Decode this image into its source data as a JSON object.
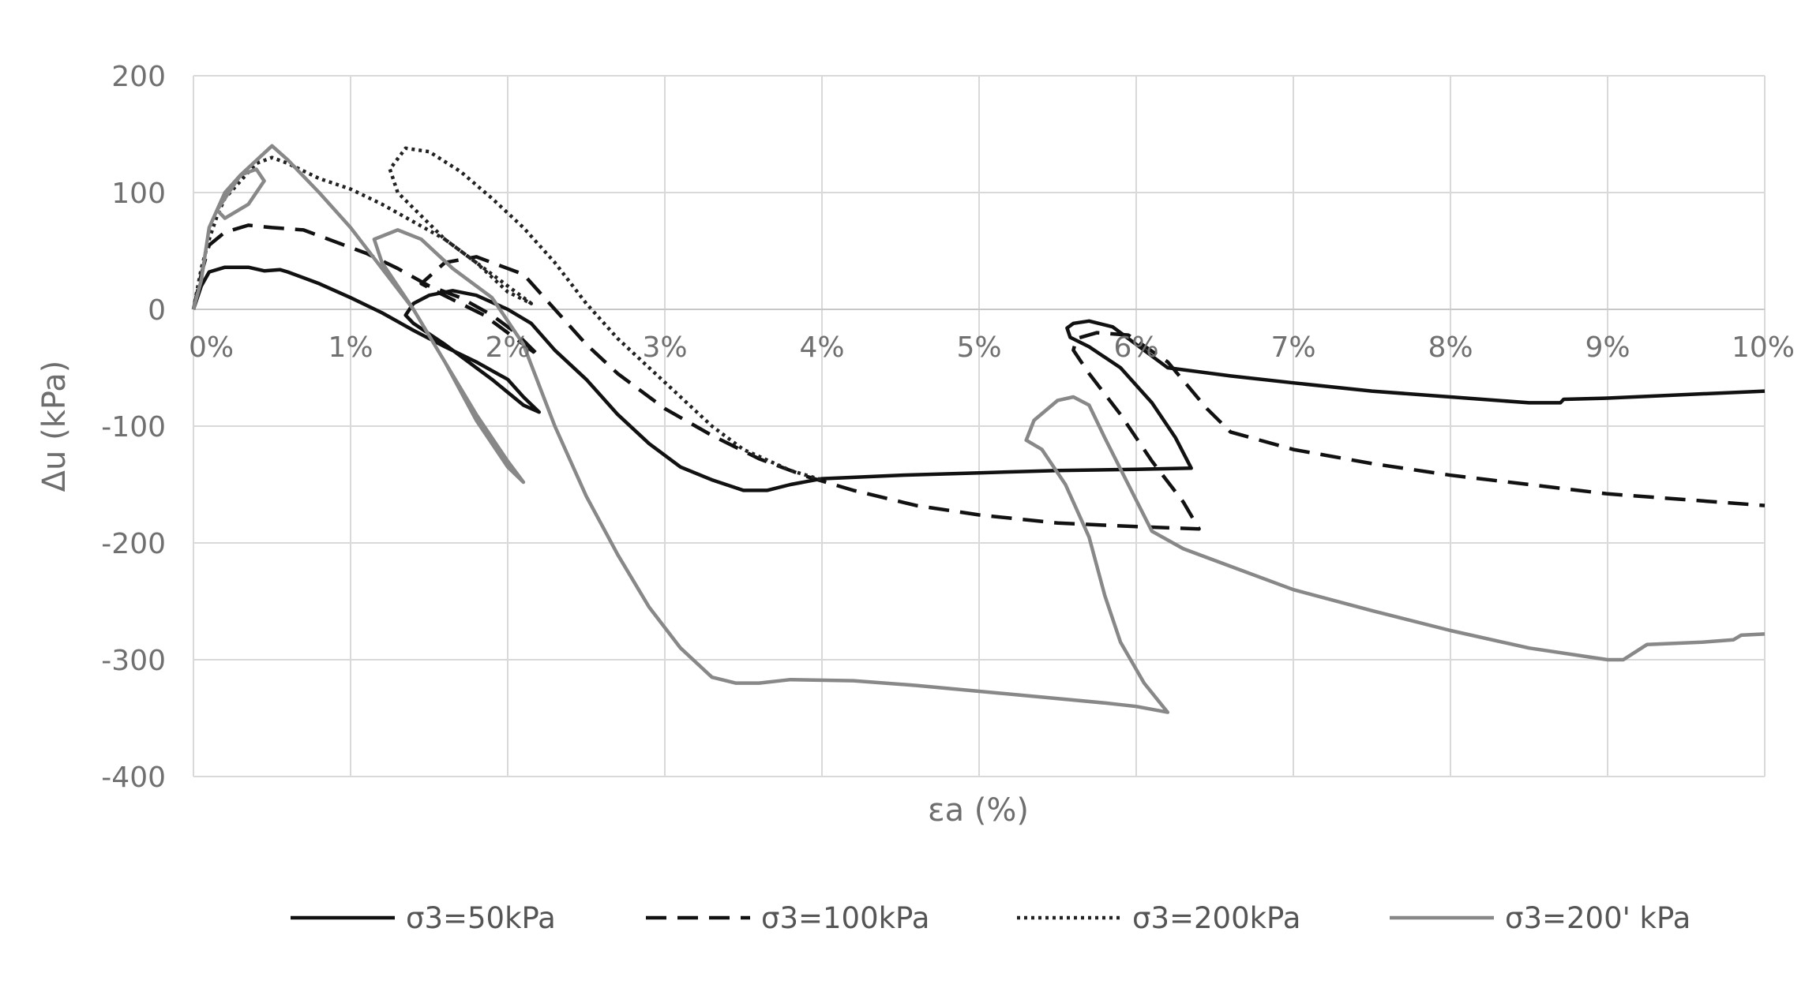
{
  "chart_data": {
    "type": "line",
    "title": "",
    "xlabel": "εa (%)",
    "ylabel": "Δu (kPa)",
    "xlim": [
      0,
      10
    ],
    "ylim": [
      -400,
      200
    ],
    "x_ticks": [
      {
        "value": 0,
        "label": "0%"
      },
      {
        "value": 1,
        "label": "1%"
      },
      {
        "value": 2,
        "label": "2%"
      },
      {
        "value": 3,
        "label": "3%"
      },
      {
        "value": 4,
        "label": "4%"
      },
      {
        "value": 5,
        "label": "5%"
      },
      {
        "value": 6,
        "label": "6%"
      },
      {
        "value": 7,
        "label": "7%"
      },
      {
        "value": 8,
        "label": "8%"
      },
      {
        "value": 9,
        "label": "9%"
      },
      {
        "value": 10,
        "label": "10%"
      }
    ],
    "y_ticks": [
      {
        "value": 200,
        "label": "200"
      },
      {
        "value": 100,
        "label": "100"
      },
      {
        "value": 0,
        "label": "0"
      },
      {
        "value": -100,
        "label": "-100"
      },
      {
        "value": -200,
        "label": "-200"
      },
      {
        "value": -300,
        "label": "-300"
      },
      {
        "value": -400,
        "label": "-400"
      }
    ],
    "grid": true,
    "legend_position": "bottom",
    "series": [
      {
        "name": "σ3=50kPa",
        "color": "#111111",
        "dash": "solid",
        "points": [
          [
            0,
            0
          ],
          [
            0.05,
            20
          ],
          [
            0.1,
            32
          ],
          [
            0.2,
            36
          ],
          [
            0.35,
            36
          ],
          [
            0.45,
            33
          ],
          [
            0.55,
            34
          ],
          [
            0.6,
            32
          ],
          [
            0.8,
            22
          ],
          [
            1.0,
            10
          ],
          [
            1.2,
            -3
          ],
          [
            1.4,
            -18
          ],
          [
            1.6,
            -32
          ],
          [
            1.8,
            -45
          ],
          [
            2.0,
            -60
          ],
          [
            2.1,
            -75
          ],
          [
            2.2,
            -88
          ],
          [
            2.1,
            -82
          ],
          [
            1.9,
            -60
          ],
          [
            1.6,
            -30
          ],
          [
            1.4,
            -12
          ],
          [
            1.35,
            -5
          ],
          [
            1.4,
            5
          ],
          [
            1.5,
            12
          ],
          [
            1.65,
            16
          ],
          [
            1.8,
            12
          ],
          [
            2.0,
            0
          ],
          [
            2.15,
            -12
          ],
          [
            2.3,
            -35
          ],
          [
            2.5,
            -60
          ],
          [
            2.7,
            -90
          ],
          [
            2.9,
            -115
          ],
          [
            3.1,
            -135
          ],
          [
            3.3,
            -146
          ],
          [
            3.5,
            -155
          ],
          [
            3.65,
            -155
          ],
          [
            3.8,
            -150
          ],
          [
            4.0,
            -145
          ],
          [
            4.5,
            -142
          ],
          [
            5.0,
            -140
          ],
          [
            5.5,
            -138
          ],
          [
            6.0,
            -137
          ],
          [
            6.35,
            -136
          ],
          [
            6.25,
            -110
          ],
          [
            6.1,
            -80
          ],
          [
            5.9,
            -50
          ],
          [
            5.7,
            -32
          ],
          [
            5.58,
            -24
          ],
          [
            5.56,
            -16
          ],
          [
            5.6,
            -12
          ],
          [
            5.7,
            -10
          ],
          [
            5.85,
            -15
          ],
          [
            6.0,
            -30
          ],
          [
            6.2,
            -50
          ],
          [
            6.6,
            -57
          ],
          [
            7.0,
            -63
          ],
          [
            7.5,
            -70
          ],
          [
            8.0,
            -75
          ],
          [
            8.5,
            -80
          ],
          [
            8.7,
            -80
          ],
          [
            8.72,
            -77
          ],
          [
            9.0,
            -76
          ],
          [
            9.5,
            -73
          ],
          [
            10.0,
            -70
          ]
        ]
      },
      {
        "name": "σ3=100kPa",
        "color": "#111111",
        "dash": "26 14",
        "points": [
          [
            0,
            0
          ],
          [
            0.05,
            30
          ],
          [
            0.1,
            55
          ],
          [
            0.2,
            66
          ],
          [
            0.35,
            72
          ],
          [
            0.5,
            70
          ],
          [
            0.7,
            68
          ],
          [
            0.9,
            58
          ],
          [
            1.1,
            48
          ],
          [
            1.3,
            35
          ],
          [
            1.5,
            20
          ],
          [
            1.7,
            10
          ],
          [
            1.9,
            -5
          ],
          [
            2.05,
            -20
          ],
          [
            2.2,
            -40
          ],
          [
            2.05,
            -25
          ],
          [
            1.85,
            -5
          ],
          [
            1.55,
            15
          ],
          [
            1.45,
            22
          ],
          [
            1.6,
            40
          ],
          [
            1.8,
            45
          ],
          [
            2.1,
            30
          ],
          [
            2.3,
            0
          ],
          [
            2.5,
            -30
          ],
          [
            2.7,
            -55
          ],
          [
            3.0,
            -85
          ],
          [
            3.3,
            -108
          ],
          [
            3.6,
            -128
          ],
          [
            3.9,
            -143
          ],
          [
            4.2,
            -155
          ],
          [
            4.6,
            -168
          ],
          [
            5.0,
            -176
          ],
          [
            5.5,
            -183
          ],
          [
            6.0,
            -186
          ],
          [
            6.4,
            -188
          ],
          [
            6.3,
            -165
          ],
          [
            6.1,
            -130
          ],
          [
            5.9,
            -90
          ],
          [
            5.7,
            -55
          ],
          [
            5.6,
            -35
          ],
          [
            5.62,
            -25
          ],
          [
            5.75,
            -20
          ],
          [
            5.95,
            -22
          ],
          [
            6.2,
            -45
          ],
          [
            6.45,
            -85
          ],
          [
            6.6,
            -105
          ],
          [
            7.0,
            -120
          ],
          [
            7.5,
            -132
          ],
          [
            8.0,
            -142
          ],
          [
            8.5,
            -150
          ],
          [
            9.0,
            -158
          ],
          [
            9.5,
            -163
          ],
          [
            10.0,
            -168
          ]
        ]
      },
      {
        "name": "σ3=200kPa",
        "color": "#222222",
        "dash": "4 5",
        "points": [
          [
            0,
            0
          ],
          [
            0.05,
            35
          ],
          [
            0.1,
            60
          ],
          [
            0.15,
            80
          ],
          [
            0.2,
            95
          ],
          [
            0.3,
            110
          ],
          [
            0.4,
            125
          ],
          [
            0.5,
            130
          ],
          [
            0.6,
            125
          ],
          [
            0.8,
            112
          ],
          [
            1.0,
            103
          ],
          [
            1.2,
            90
          ],
          [
            1.4,
            75
          ],
          [
            1.6,
            60
          ],
          [
            1.8,
            40
          ],
          [
            2.0,
            20
          ],
          [
            2.15,
            5
          ],
          [
            2.0,
            15
          ],
          [
            1.8,
            40
          ],
          [
            1.6,
            60
          ],
          [
            1.45,
            80
          ],
          [
            1.3,
            100
          ],
          [
            1.25,
            120
          ],
          [
            1.35,
            138
          ],
          [
            1.5,
            135
          ],
          [
            1.7,
            118
          ],
          [
            1.9,
            95
          ],
          [
            2.1,
            70
          ],
          [
            2.3,
            40
          ],
          [
            2.5,
            5
          ],
          [
            2.7,
            -25
          ],
          [
            2.9,
            -50
          ],
          [
            3.1,
            -75
          ],
          [
            3.3,
            -100
          ],
          [
            3.5,
            -120
          ],
          [
            3.8,
            -138
          ],
          [
            4.0,
            -146
          ]
        ]
      },
      {
        "name": "σ3=200' kPa",
        "color": "#888888",
        "dash": "solid",
        "points": [
          [
            0,
            0
          ],
          [
            0.05,
            25
          ],
          [
            0.1,
            70
          ],
          [
            0.2,
            100
          ],
          [
            0.3,
            115
          ],
          [
            0.4,
            120
          ],
          [
            0.45,
            110
          ],
          [
            0.35,
            90
          ],
          [
            0.2,
            78
          ],
          [
            0.15,
            85
          ],
          [
            0.3,
            115
          ],
          [
            0.5,
            140
          ],
          [
            0.6,
            128
          ],
          [
            0.8,
            100
          ],
          [
            1.0,
            70
          ],
          [
            1.2,
            35
          ],
          [
            1.4,
            0
          ],
          [
            1.6,
            -45
          ],
          [
            1.8,
            -90
          ],
          [
            2.0,
            -130
          ],
          [
            2.1,
            -148
          ],
          [
            2.0,
            -135
          ],
          [
            1.8,
            -95
          ],
          [
            1.6,
            -45
          ],
          [
            1.4,
            0
          ],
          [
            1.2,
            40
          ],
          [
            1.15,
            60
          ],
          [
            1.3,
            68
          ],
          [
            1.45,
            60
          ],
          [
            1.65,
            35
          ],
          [
            1.9,
            10
          ],
          [
            2.1,
            -30
          ],
          [
            2.3,
            -100
          ],
          [
            2.5,
            -160
          ],
          [
            2.7,
            -210
          ],
          [
            2.9,
            -255
          ],
          [
            3.1,
            -290
          ],
          [
            3.3,
            -315
          ],
          [
            3.45,
            -320
          ],
          [
            3.6,
            -320
          ],
          [
            3.8,
            -317
          ],
          [
            4.2,
            -318
          ],
          [
            4.6,
            -322
          ],
          [
            5.0,
            -327
          ],
          [
            5.4,
            -332
          ],
          [
            5.8,
            -337
          ],
          [
            6.0,
            -340
          ],
          [
            6.2,
            -345
          ],
          [
            6.05,
            -320
          ],
          [
            5.9,
            -285
          ],
          [
            5.8,
            -245
          ],
          [
            5.7,
            -195
          ],
          [
            5.55,
            -150
          ],
          [
            5.4,
            -120
          ],
          [
            5.3,
            -112
          ],
          [
            5.35,
            -95
          ],
          [
            5.5,
            -78
          ],
          [
            5.6,
            -75
          ],
          [
            5.7,
            -82
          ],
          [
            5.8,
            -110
          ],
          [
            5.95,
            -150
          ],
          [
            6.1,
            -190
          ],
          [
            6.3,
            -205
          ],
          [
            6.6,
            -220
          ],
          [
            7.0,
            -240
          ],
          [
            7.5,
            -258
          ],
          [
            8.0,
            -275
          ],
          [
            8.5,
            -290
          ],
          [
            9.0,
            -300
          ],
          [
            9.1,
            -300
          ],
          [
            9.25,
            -287
          ],
          [
            9.6,
            -285
          ],
          [
            9.8,
            -283
          ],
          [
            9.85,
            -279
          ],
          [
            10.0,
            -278
          ]
        ]
      }
    ]
  }
}
